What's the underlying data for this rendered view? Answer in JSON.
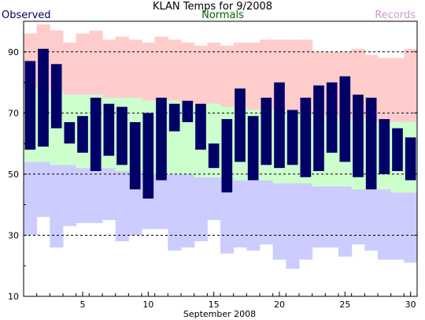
{
  "chart_data": {
    "type": "bar",
    "title": "KLAN Temps for 9/2008",
    "xlabel": "September 2008",
    "ylabel": "",
    "ylim": [
      10,
      100
    ],
    "xlim": [
      0.5,
      30.5
    ],
    "yticks": [
      10,
      30,
      50,
      70,
      90
    ],
    "xticks": [
      5,
      10,
      15,
      20,
      25,
      30
    ],
    "gridlines_y": [
      30,
      50,
      70,
      90
    ],
    "legend": {
      "observed": "Observed",
      "normals": "Normals",
      "records": "Records",
      "placement": "top"
    },
    "colors": {
      "observed": "#000066",
      "normals": "#ccffcc",
      "records_high": "#ffcccc",
      "records_low": "#ccccff",
      "observed_label": "#000066",
      "normals_label": "#006600",
      "records_label": "#cc99cc"
    },
    "x": [
      1,
      2,
      3,
      4,
      5,
      6,
      7,
      8,
      9,
      10,
      11,
      12,
      13,
      14,
      15,
      16,
      17,
      18,
      19,
      20,
      21,
      22,
      23,
      24,
      25,
      26,
      27,
      28,
      29,
      30
    ],
    "series": [
      {
        "name": "Records",
        "key": "record_high",
        "values": [
          96,
          99,
          97,
          93,
          96,
          97,
          94,
          95,
          94,
          93,
          95,
          94,
          93,
          92,
          93,
          92,
          93,
          93,
          94,
          94,
          94,
          94,
          90,
          90,
          90,
          91,
          89,
          88,
          88,
          91
        ]
      },
      {
        "name": "Normals",
        "key": "normal_high",
        "values": [
          78,
          77,
          77,
          76,
          76,
          76,
          75,
          75,
          75,
          74,
          74,
          74,
          73,
          73,
          73,
          72,
          72,
          71,
          71,
          71,
          70,
          70,
          69,
          69,
          68,
          68,
          67,
          67,
          67,
          67
        ]
      },
      {
        "name": "Normals",
        "key": "normal_low",
        "values": [
          54,
          54,
          53,
          53,
          52,
          52,
          52,
          51,
          51,
          50,
          50,
          50,
          50,
          49,
          49,
          49,
          48,
          48,
          48,
          47,
          47,
          47,
          46,
          46,
          46,
          45,
          45,
          45,
          44,
          44
        ]
      },
      {
        "name": "Records",
        "key": "record_low",
        "values": [
          30,
          36,
          26,
          33,
          34,
          34,
          35,
          28,
          30,
          32,
          32,
          25,
          26,
          28,
          35,
          24,
          26,
          25,
          27,
          22,
          19,
          22,
          26,
          26,
          23,
          27,
          25,
          22,
          22,
          21
        ]
      },
      {
        "name": "Observed",
        "key": "observed_high",
        "values": [
          87,
          91,
          86,
          67,
          69,
          75,
          73,
          72,
          67,
          70,
          75,
          73,
          74,
          73,
          60,
          68,
          78,
          69,
          75,
          80,
          71,
          75,
          79,
          80,
          82,
          76,
          75,
          68,
          65,
          62
        ]
      },
      {
        "name": "Observed",
        "key": "observed_low",
        "values": [
          58,
          59,
          65,
          60,
          57,
          51,
          56,
          53,
          45,
          42,
          48,
          64,
          67,
          58,
          52,
          44,
          54,
          48,
          53,
          52,
          53,
          49,
          51,
          57,
          54,
          49,
          45,
          50,
          51,
          48
        ]
      }
    ]
  }
}
